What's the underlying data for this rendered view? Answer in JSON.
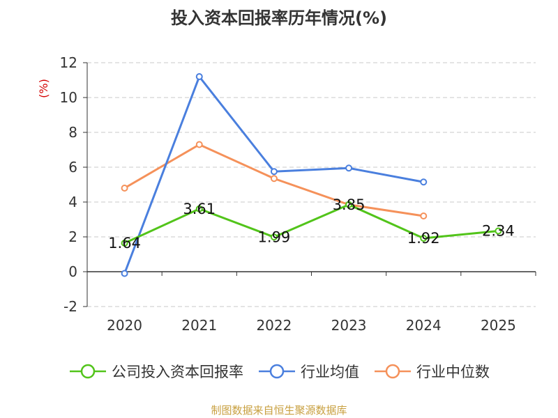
{
  "chart_data": {
    "type": "line",
    "title": "投入资本回报率历年情况(%)",
    "ylabel": "(%)",
    "categories": [
      "2020",
      "2021",
      "2022",
      "2023",
      "2024",
      "2025"
    ],
    "ylim": [
      -2,
      12
    ],
    "yticks": [
      -2,
      0,
      2,
      4,
      6,
      8,
      10,
      12
    ],
    "grid": true,
    "legend_position": "bottom",
    "series": [
      {
        "name": "公司投入资本回报率",
        "color": "#52c41a",
        "values": [
          1.64,
          3.61,
          1.99,
          3.85,
          1.92,
          2.34
        ],
        "show_labels": true
      },
      {
        "name": "行业均值",
        "color": "#4a7fde",
        "values": [
          -0.1,
          11.2,
          5.75,
          5.95,
          5.15,
          null
        ],
        "show_labels": false
      },
      {
        "name": "行业中位数",
        "color": "#f5915a",
        "values": [
          4.8,
          7.3,
          5.35,
          3.85,
          3.2,
          null
        ],
        "show_labels": false
      }
    ]
  },
  "footer": {
    "source": "制图数据来自恒生聚源数据库"
  }
}
